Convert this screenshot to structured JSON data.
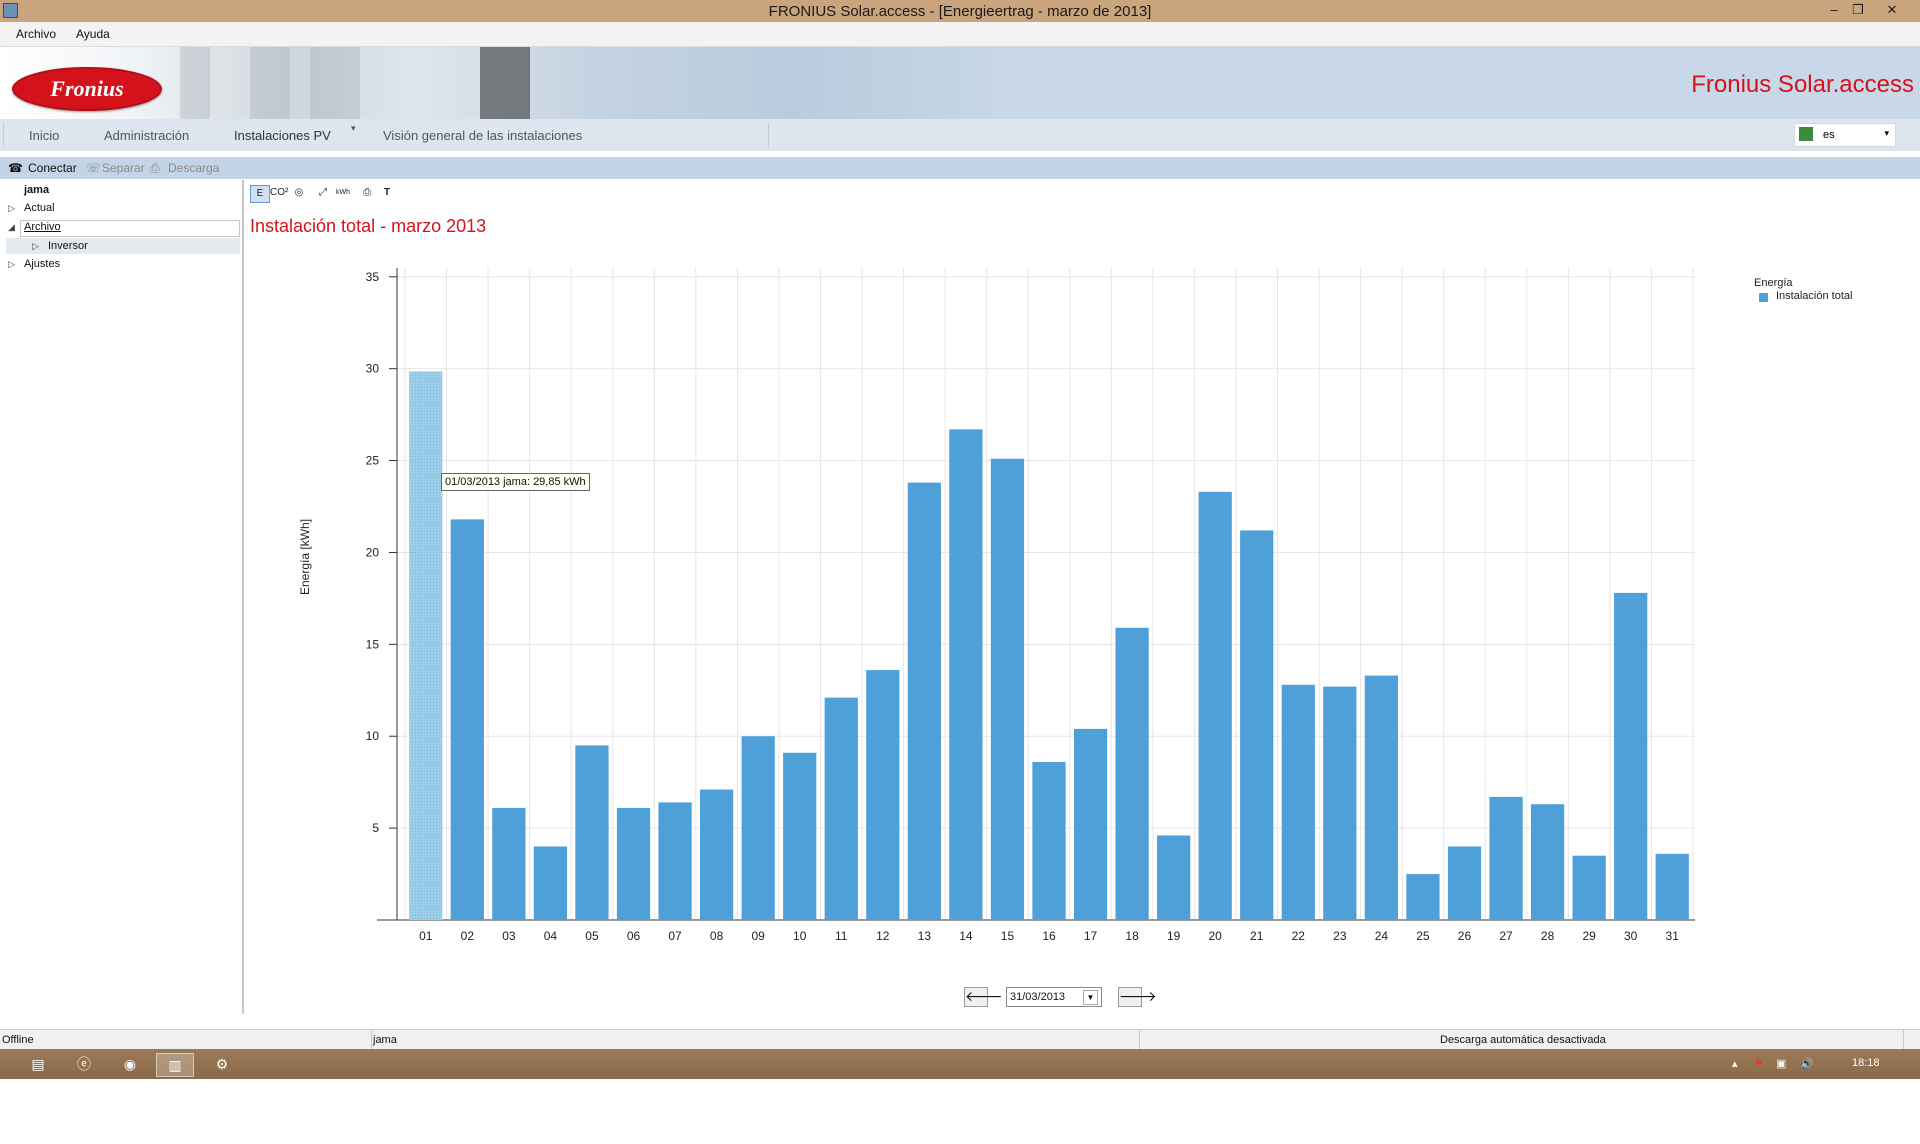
{
  "window": {
    "title": "FRONIUS Solar.access - [Energieertrag - marzo de 2013]"
  },
  "menu": {
    "items": [
      "Archivo",
      "Ayuda"
    ]
  },
  "banner": {
    "logo_text": "Fronius",
    "brand": "Fronius Solar.access"
  },
  "nav": {
    "tabs": [
      "Inicio",
      "Administración",
      "Instalaciones PV",
      "Visión general de las instalaciones"
    ],
    "language": "es"
  },
  "toolbar": {
    "connect": "Conectar",
    "separate": "Separar",
    "download": "Descarga"
  },
  "tree": {
    "root": "jama",
    "actual": "Actual",
    "archivo": "Archivo",
    "inversor": "Inversor",
    "ajustes": "Ajustes"
  },
  "chart_tools": [
    "E",
    "CO²",
    "kWh",
    "T"
  ],
  "chart_heading": "Instalación total - marzo 2013",
  "tooltip": "01/03/2013 jama: 29,85 kWh",
  "date_value": "31/03/2013",
  "status": {
    "left": "Offline",
    "center": "jama",
    "right": "Descarga automática desactivada"
  },
  "taskbar": {
    "clock": "18:18"
  },
  "colors": {
    "bar": "#4fa0d8",
    "bar_highlight": "#9ccde9",
    "title": "#d4121c"
  },
  "chart_data": {
    "type": "bar",
    "categories": [
      "01",
      "02",
      "03",
      "04",
      "05",
      "06",
      "07",
      "08",
      "09",
      "10",
      "11",
      "12",
      "13",
      "14",
      "15",
      "16",
      "17",
      "18",
      "19",
      "20",
      "21",
      "22",
      "23",
      "24",
      "25",
      "26",
      "27",
      "28",
      "29",
      "30",
      "31"
    ],
    "series": [
      {
        "name": "Instalación total",
        "values": [
          29.85,
          21.8,
          6.1,
          4.0,
          9.5,
          6.1,
          6.4,
          7.1,
          10.0,
          9.1,
          12.1,
          13.6,
          23.8,
          26.7,
          25.1,
          8.6,
          10.4,
          15.9,
          4.6,
          23.3,
          21.2,
          12.8,
          12.7,
          13.3,
          2.5,
          4.0,
          6.7,
          6.3,
          3.5,
          17.8,
          3.6
        ]
      }
    ],
    "legend_title": "Energía",
    "ylabel": "Energía [kWh]",
    "yticks": [
      5,
      10,
      15,
      20,
      25,
      30,
      35
    ],
    "ylim": [
      0,
      35
    ],
    "grid": true,
    "highlight_index": 0,
    "legend_position": "top-right"
  }
}
